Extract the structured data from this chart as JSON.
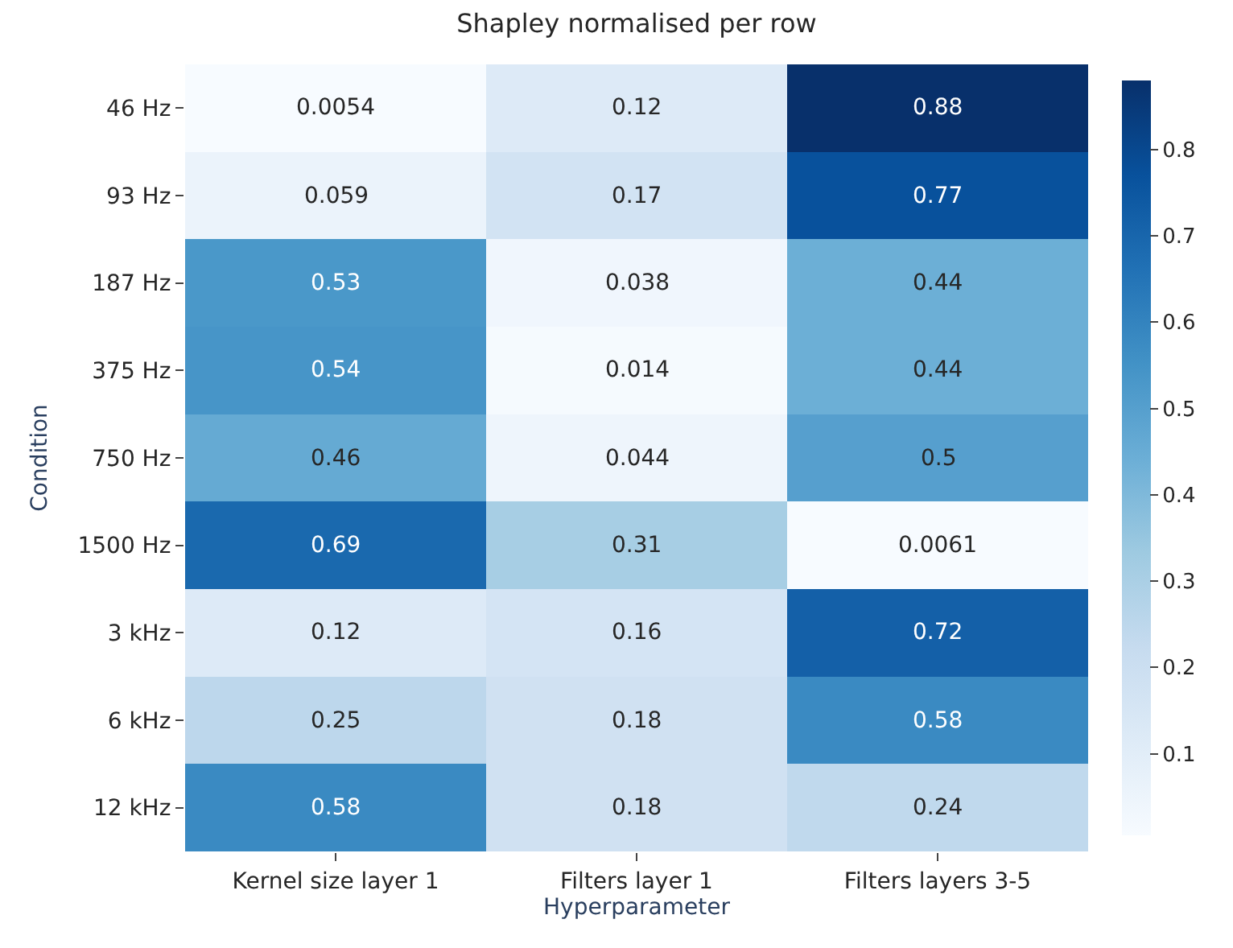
{
  "chart_data": {
    "type": "heatmap",
    "title": "Shapley normalised per row",
    "xlabel": "Hyperparameter",
    "ylabel": "Condition",
    "categories": [
      "Kernel size layer 1",
      "Filters layer 1",
      "Filters layers 3-5"
    ],
    "y_categories": [
      "46 Hz",
      "93 Hz",
      "187 Hz",
      "375 Hz",
      "750 Hz",
      "1500 Hz",
      "3 kHz",
      "6 kHz",
      "12 kHz"
    ],
    "cells": [
      [
        0.0054,
        0.12,
        0.88
      ],
      [
        0.059,
        0.17,
        0.77
      ],
      [
        0.53,
        0.038,
        0.44
      ],
      [
        0.54,
        0.014,
        0.44
      ],
      [
        0.46,
        0.044,
        0.5
      ],
      [
        0.69,
        0.31,
        0.0061
      ],
      [
        0.12,
        0.16,
        0.72
      ],
      [
        0.25,
        0.18,
        0.58
      ],
      [
        0.58,
        0.18,
        0.24
      ]
    ],
    "clim": [
      0.0054,
      0.88
    ],
    "cticks": [
      0.1,
      0.2,
      0.3,
      0.4,
      0.5,
      0.6,
      0.7,
      0.8
    ],
    "data_labels": true
  }
}
